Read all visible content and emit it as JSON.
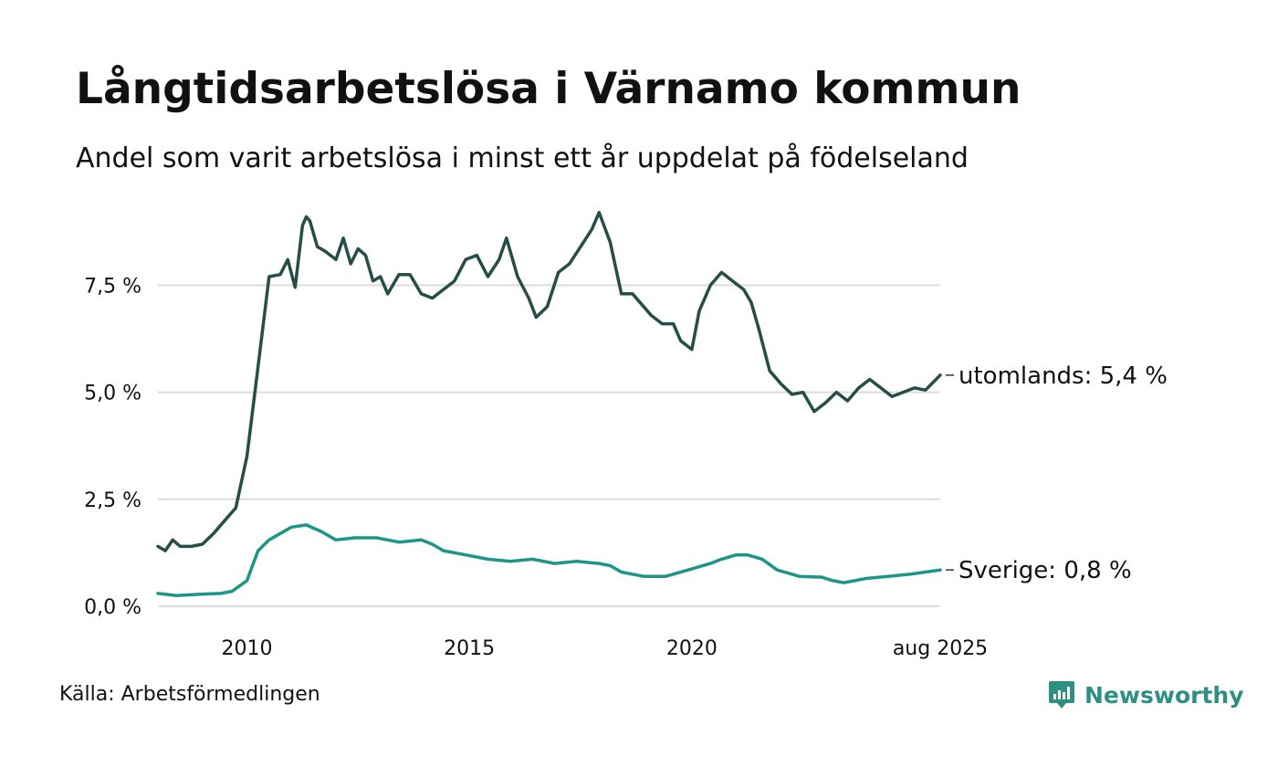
{
  "header": {
    "title": "Långtidsarbetslösa i Värnamo kommun",
    "subtitle": "Andel som varit arbetslösa i minst ett år uppdelat på födelseland"
  },
  "footer": {
    "source": "Källa: Arbetsförmedlingen",
    "brand": "Newsworthy"
  },
  "colors": {
    "utomlands": "#264d47",
    "sverige": "#1e9687",
    "grid": "#dddddd",
    "brand": "#2f8f83"
  },
  "icons": {
    "brand_logo": "newsworthy-logo-icon"
  },
  "chart_data": {
    "type": "line",
    "title": "Långtidsarbetslösa i Värnamo kommun",
    "subtitle": "Andel som varit arbetslösa i minst ett år uppdelat på födelseland",
    "x_range": [
      "2008-01",
      "2025-08"
    ],
    "ylim": [
      0,
      9.3
    ],
    "y_ticks": [
      0,
      2.5,
      5.0,
      7.5
    ],
    "y_tick_labels": [
      "0,0 %",
      "2,5 %",
      "5,0 %",
      "7,5 %"
    ],
    "x_ticks": [
      "2010-01",
      "2015-01",
      "2020-01",
      "2025-08"
    ],
    "x_tick_labels": [
      "2010",
      "2015",
      "2020",
      "aug 2025"
    ],
    "grid": "horizontal",
    "legend": "end-labels",
    "series": [
      {
        "key": "utomlands",
        "label": "utomlands: 5,4 %",
        "points": [
          [
            "2008-01",
            1.4
          ],
          [
            "2008-03",
            1.3
          ],
          [
            "2008-05",
            1.55
          ],
          [
            "2008-07",
            1.4
          ],
          [
            "2008-10",
            1.4
          ],
          [
            "2009-01",
            1.45
          ],
          [
            "2009-04",
            1.7
          ],
          [
            "2009-07",
            2.0
          ],
          [
            "2009-10",
            2.3
          ],
          [
            "2010-01",
            3.5
          ],
          [
            "2010-04",
            5.6
          ],
          [
            "2010-07",
            7.7
          ],
          [
            "2010-10",
            7.75
          ],
          [
            "2010-12",
            8.1
          ],
          [
            "2011-02",
            7.45
          ],
          [
            "2011-04",
            8.9
          ],
          [
            "2011-05",
            9.1
          ],
          [
            "2011-06",
            9.0
          ],
          [
            "2011-08",
            8.4
          ],
          [
            "2011-10",
            8.3
          ],
          [
            "2012-01",
            8.1
          ],
          [
            "2012-03",
            8.6
          ],
          [
            "2012-05",
            8.0
          ],
          [
            "2012-07",
            8.35
          ],
          [
            "2012-09",
            8.2
          ],
          [
            "2012-11",
            7.6
          ],
          [
            "2013-01",
            7.7
          ],
          [
            "2013-03",
            7.3
          ],
          [
            "2013-06",
            7.75
          ],
          [
            "2013-09",
            7.75
          ],
          [
            "2013-12",
            7.3
          ],
          [
            "2014-03",
            7.2
          ],
          [
            "2014-06",
            7.4
          ],
          [
            "2014-09",
            7.6
          ],
          [
            "2014-12",
            8.1
          ],
          [
            "2015-03",
            8.2
          ],
          [
            "2015-06",
            7.7
          ],
          [
            "2015-09",
            8.1
          ],
          [
            "2015-11",
            8.6
          ],
          [
            "2016-02",
            7.7
          ],
          [
            "2016-05",
            7.2
          ],
          [
            "2016-07",
            6.75
          ],
          [
            "2016-10",
            7.0
          ],
          [
            "2017-01",
            7.8
          ],
          [
            "2017-04",
            8.0
          ],
          [
            "2017-07",
            8.4
          ],
          [
            "2017-10",
            8.8
          ],
          [
            "2017-12",
            9.2
          ],
          [
            "2018-03",
            8.5
          ],
          [
            "2018-06",
            7.3
          ],
          [
            "2018-09",
            7.3
          ],
          [
            "2018-12",
            7.0
          ],
          [
            "2019-02",
            6.8
          ],
          [
            "2019-05",
            6.6
          ],
          [
            "2019-08",
            6.6
          ],
          [
            "2019-10",
            6.2
          ],
          [
            "2020-01",
            6.0
          ],
          [
            "2020-03",
            6.9
          ],
          [
            "2020-06",
            7.5
          ],
          [
            "2020-09",
            7.8
          ],
          [
            "2020-12",
            7.6
          ],
          [
            "2021-03",
            7.4
          ],
          [
            "2021-05",
            7.1
          ],
          [
            "2021-07",
            6.5
          ],
          [
            "2021-10",
            5.5
          ],
          [
            "2022-01",
            5.2
          ],
          [
            "2022-04",
            4.95
          ],
          [
            "2022-07",
            5.0
          ],
          [
            "2022-10",
            4.55
          ],
          [
            "2023-01",
            4.75
          ],
          [
            "2023-04",
            5.0
          ],
          [
            "2023-07",
            4.8
          ],
          [
            "2023-10",
            5.1
          ],
          [
            "2024-01",
            5.3
          ],
          [
            "2024-04",
            5.1
          ],
          [
            "2024-07",
            4.9
          ],
          [
            "2024-10",
            5.0
          ],
          [
            "2025-01",
            5.1
          ],
          [
            "2025-04",
            5.05
          ],
          [
            "2025-08",
            5.4
          ]
        ]
      },
      {
        "key": "sverige",
        "label": "Sverige: 0,8 %",
        "points": [
          [
            "2008-01",
            0.3
          ],
          [
            "2008-06",
            0.25
          ],
          [
            "2008-12",
            0.28
          ],
          [
            "2009-06",
            0.3
          ],
          [
            "2009-09",
            0.35
          ],
          [
            "2010-01",
            0.6
          ],
          [
            "2010-04",
            1.3
          ],
          [
            "2010-07",
            1.55
          ],
          [
            "2010-10",
            1.7
          ],
          [
            "2011-01",
            1.85
          ],
          [
            "2011-05",
            1.9
          ],
          [
            "2011-09",
            1.75
          ],
          [
            "2012-01",
            1.55
          ],
          [
            "2012-06",
            1.6
          ],
          [
            "2012-12",
            1.6
          ],
          [
            "2013-06",
            1.5
          ],
          [
            "2013-12",
            1.55
          ],
          [
            "2014-03",
            1.45
          ],
          [
            "2014-06",
            1.3
          ],
          [
            "2014-12",
            1.2
          ],
          [
            "2015-06",
            1.1
          ],
          [
            "2015-12",
            1.05
          ],
          [
            "2016-06",
            1.1
          ],
          [
            "2016-12",
            1.0
          ],
          [
            "2017-06",
            1.05
          ],
          [
            "2017-12",
            1.0
          ],
          [
            "2018-03",
            0.95
          ],
          [
            "2018-06",
            0.8
          ],
          [
            "2018-12",
            0.7
          ],
          [
            "2019-06",
            0.7
          ],
          [
            "2019-12",
            0.85
          ],
          [
            "2020-06",
            1.0
          ],
          [
            "2020-09",
            1.1
          ],
          [
            "2021-01",
            1.2
          ],
          [
            "2021-04",
            1.2
          ],
          [
            "2021-08",
            1.1
          ],
          [
            "2021-12",
            0.85
          ],
          [
            "2022-06",
            0.7
          ],
          [
            "2022-12",
            0.68
          ],
          [
            "2023-03",
            0.6
          ],
          [
            "2023-06",
            0.55
          ],
          [
            "2023-12",
            0.65
          ],
          [
            "2024-06",
            0.7
          ],
          [
            "2024-12",
            0.75
          ],
          [
            "2025-04",
            0.8
          ],
          [
            "2025-08",
            0.85
          ]
        ]
      }
    ]
  }
}
